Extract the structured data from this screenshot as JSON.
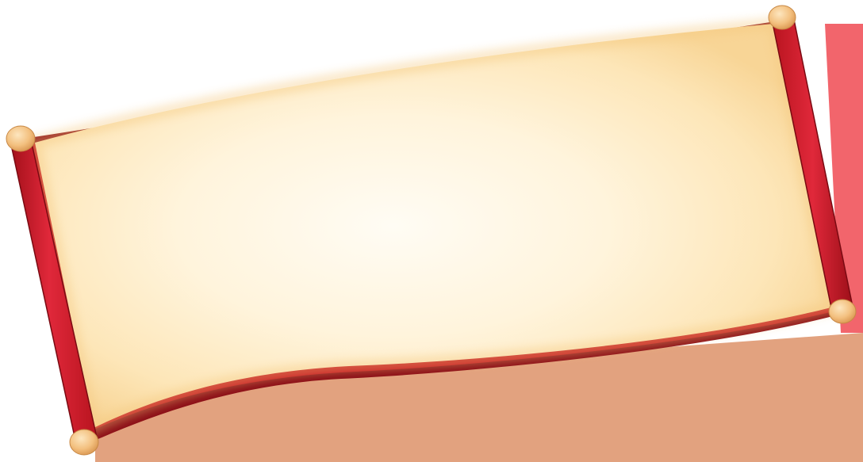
{
  "scroll": {
    "parchment_light": "#fffaf0",
    "parchment_mid": "#fde9c0",
    "parchment_edge": "#f6cf8a",
    "rod_red": "#d81e2c",
    "rod_dark": "#8b0d16",
    "shadow_red": "#c2121c",
    "cap_gold": "#f7c98a",
    "backdrop_salmon": "#e0a07e"
  }
}
